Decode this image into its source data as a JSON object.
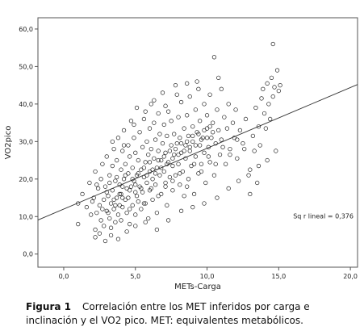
{
  "chart_data": {
    "type": "scatter",
    "xlabel": "METs-Carga",
    "ylabel": "VO2pico",
    "xlim": [
      -1.8,
      20.5
    ],
    "ylim": [
      -3.5,
      63
    ],
    "xticks": [
      "0,0",
      "5,0",
      "10,0",
      "15,0",
      "20,0"
    ],
    "xtick_values": [
      0,
      5,
      10,
      15,
      20
    ],
    "yticks": [
      "0,0",
      "10,0",
      "20,0",
      "30,0",
      "40,0",
      "50,0",
      "60,0"
    ],
    "ytick_values": [
      0,
      10,
      20,
      30,
      40,
      50,
      60
    ],
    "grid": false,
    "marker": "open-circle",
    "fit_line": {
      "intercept": 12.0,
      "slope": 1.62
    },
    "annotation": "Sq r lineal = 0,376",
    "points": [
      [
        1.0,
        13.5
      ],
      [
        1.0,
        8.0
      ],
      [
        1.3,
        16.0
      ],
      [
        1.6,
        12.5
      ],
      [
        1.8,
        19.0
      ],
      [
        1.9,
        10.5
      ],
      [
        2.1,
        15.0
      ],
      [
        2.2,
        6.5
      ],
      [
        2.2,
        22.0
      ],
      [
        2.3,
        11.0
      ],
      [
        2.4,
        17.5
      ],
      [
        2.5,
        13.0
      ],
      [
        2.6,
        9.0
      ],
      [
        2.6,
        20.0
      ],
      [
        2.7,
        24.0
      ],
      [
        2.8,
        14.5
      ],
      [
        2.8,
        7.5
      ],
      [
        2.9,
        18.0
      ],
      [
        3.0,
        11.5
      ],
      [
        3.0,
        26.0
      ],
      [
        3.1,
        15.5
      ],
      [
        3.2,
        21.0
      ],
      [
        3.2,
        9.5
      ],
      [
        3.3,
        13.5
      ],
      [
        3.3,
        5.0
      ],
      [
        3.4,
        17.0
      ],
      [
        3.4,
        23.5
      ],
      [
        3.5,
        12.0
      ],
      [
        3.5,
        28.0
      ],
      [
        3.6,
        19.5
      ],
      [
        3.6,
        8.5
      ],
      [
        3.7,
        15.0
      ],
      [
        3.7,
        25.0
      ],
      [
        3.8,
        10.5
      ],
      [
        3.8,
        31.0
      ],
      [
        3.9,
        18.5
      ],
      [
        3.9,
        13.0
      ],
      [
        4.0,
        22.5
      ],
      [
        4.0,
        16.0
      ],
      [
        4.0,
        9.0
      ],
      [
        4.1,
        27.5
      ],
      [
        4.1,
        12.5
      ],
      [
        4.2,
        20.0
      ],
      [
        4.2,
        33.0
      ],
      [
        4.3,
        14.5
      ],
      [
        4.3,
        24.0
      ],
      [
        4.4,
        17.5
      ],
      [
        4.4,
        11.0
      ],
      [
        4.5,
        29.0
      ],
      [
        4.5,
        21.5
      ],
      [
        4.5,
        15.0
      ],
      [
        4.6,
        8.0
      ],
      [
        4.6,
        26.0
      ],
      [
        4.7,
        18.0
      ],
      [
        4.7,
        35.5
      ],
      [
        4.8,
        13.0
      ],
      [
        4.8,
        23.0
      ],
      [
        4.9,
        19.5
      ],
      [
        4.9,
        31.0
      ],
      [
        5.0,
        16.5
      ],
      [
        5.0,
        10.5
      ],
      [
        5.0,
        27.0
      ],
      [
        5.1,
        21.0
      ],
      [
        5.1,
        39.0
      ],
      [
        5.2,
        14.0
      ],
      [
        5.2,
        25.0
      ],
      [
        5.3,
        18.0
      ],
      [
        5.3,
        32.5
      ],
      [
        5.4,
        22.5
      ],
      [
        5.4,
        12.0
      ],
      [
        5.5,
        28.5
      ],
      [
        5.5,
        16.5
      ],
      [
        5.6,
        20.5
      ],
      [
        5.6,
        36.0
      ],
      [
        5.7,
        24.5
      ],
      [
        5.7,
        13.5
      ],
      [
        5.8,
        30.0
      ],
      [
        5.8,
        19.0
      ],
      [
        5.9,
        26.5
      ],
      [
        5.9,
        9.5
      ],
      [
        6.0,
        22.0
      ],
      [
        6.0,
        33.5
      ],
      [
        6.0,
        17.0
      ],
      [
        6.1,
        28.0
      ],
      [
        6.1,
        40.0
      ],
      [
        6.2,
        20.0
      ],
      [
        6.2,
        14.5
      ],
      [
        6.3,
        25.5
      ],
      [
        6.3,
        35.0
      ],
      [
        6.4,
        18.5
      ],
      [
        6.4,
        30.5
      ],
      [
        6.5,
        23.0
      ],
      [
        6.5,
        11.0
      ],
      [
        6.6,
        27.5
      ],
      [
        6.6,
        37.5
      ],
      [
        6.7,
        21.0
      ],
      [
        6.7,
        32.0
      ],
      [
        6.8,
        16.0
      ],
      [
        6.8,
        25.0
      ],
      [
        6.9,
        29.5
      ],
      [
        6.9,
        43.0
      ],
      [
        7.0,
        22.0
      ],
      [
        7.0,
        34.5
      ],
      [
        7.1,
        19.0
      ],
      [
        7.1,
        27.0
      ],
      [
        7.2,
        31.5
      ],
      [
        7.2,
        13.0
      ],
      [
        7.3,
        24.5
      ],
      [
        7.3,
        38.0
      ],
      [
        7.4,
        20.5
      ],
      [
        7.5,
        29.0
      ],
      [
        7.5,
        35.5
      ],
      [
        7.6,
        23.5
      ],
      [
        7.6,
        17.0
      ],
      [
        7.7,
        32.0
      ],
      [
        7.7,
        26.5
      ],
      [
        7.8,
        45.0
      ],
      [
        7.8,
        21.0
      ],
      [
        7.9,
        29.5
      ],
      [
        8.0,
        24.0
      ],
      [
        8.0,
        36.5
      ],
      [
        8.1,
        18.5
      ],
      [
        8.1,
        31.0
      ],
      [
        8.2,
        27.0
      ],
      [
        8.2,
        40.5
      ],
      [
        8.3,
        22.0
      ],
      [
        8.4,
        33.5
      ],
      [
        8.4,
        15.5
      ],
      [
        8.5,
        29.0
      ],
      [
        8.5,
        25.5
      ],
      [
        8.6,
        37.0
      ],
      [
        8.7,
        20.0
      ],
      [
        8.7,
        31.5
      ],
      [
        8.8,
        42.0
      ],
      [
        8.8,
        27.5
      ],
      [
        8.9,
        23.5
      ],
      [
        9.0,
        34.0
      ],
      [
        9.0,
        30.0
      ],
      [
        9.1,
        16.0
      ],
      [
        9.2,
        38.5
      ],
      [
        9.2,
        26.0
      ],
      [
        9.3,
        32.5
      ],
      [
        9.4,
        21.5
      ],
      [
        9.4,
        44.0
      ],
      [
        9.5,
        29.0
      ],
      [
        9.5,
        35.5
      ],
      [
        9.6,
        24.0
      ],
      [
        9.7,
        31.0
      ],
      [
        9.8,
        40.0
      ],
      [
        9.8,
        27.0
      ],
      [
        9.9,
        19.0
      ],
      [
        10.0,
        33.5
      ],
      [
        10.0,
        37.0
      ],
      [
        10.1,
        28.5
      ],
      [
        10.2,
        42.5
      ],
      [
        10.2,
        24.5
      ],
      [
        10.3,
        31.0
      ],
      [
        10.4,
        35.0
      ],
      [
        10.5,
        52.5
      ],
      [
        10.5,
        21.0
      ],
      [
        10.6,
        29.5
      ],
      [
        10.7,
        38.5
      ],
      [
        10.8,
        33.0
      ],
      [
        10.9,
        26.5
      ],
      [
        11.0,
        44.0
      ],
      [
        11.0,
        30.5
      ],
      [
        11.2,
        36.5
      ],
      [
        11.3,
        24.0
      ],
      [
        11.4,
        33.5
      ],
      [
        11.5,
        40.0
      ],
      [
        11.6,
        28.0
      ],
      [
        11.8,
        35.0
      ],
      [
        11.9,
        31.0
      ],
      [
        12.0,
        38.5
      ],
      [
        12.1,
        25.5
      ],
      [
        12.3,
        33.0
      ],
      [
        12.5,
        29.5
      ],
      [
        12.7,
        36.0
      ],
      [
        13.0,
        16.0
      ],
      [
        13.0,
        22.5
      ],
      [
        13.2,
        31.5
      ],
      [
        13.3,
        27.5
      ],
      [
        13.4,
        39.0
      ],
      [
        13.5,
        19.0
      ],
      [
        13.6,
        34.0
      ],
      [
        13.7,
        29.0
      ],
      [
        13.8,
        41.5
      ],
      [
        13.9,
        44.0
      ],
      [
        14.0,
        37.5
      ],
      [
        14.1,
        33.5
      ],
      [
        14.2,
        45.5
      ],
      [
        14.3,
        40.0
      ],
      [
        14.4,
        36.0
      ],
      [
        14.5,
        47.0
      ],
      [
        14.6,
        56.0
      ],
      [
        14.6,
        42.0
      ],
      [
        14.7,
        44.5
      ],
      [
        14.9,
        49.0
      ],
      [
        15.0,
        43.5
      ],
      [
        15.1,
        45.0
      ],
      [
        2.0,
        14.0
      ],
      [
        2.3,
        18.5
      ],
      [
        2.7,
        12.0
      ],
      [
        3.0,
        16.5
      ],
      [
        3.2,
        19.0
      ],
      [
        3.5,
        14.5
      ],
      [
        3.7,
        20.5
      ],
      [
        3.9,
        16.0
      ],
      [
        4.1,
        18.0
      ],
      [
        4.3,
        21.0
      ],
      [
        4.6,
        17.0
      ],
      [
        4.8,
        20.0
      ],
      [
        5.0,
        18.5
      ],
      [
        5.2,
        21.5
      ],
      [
        5.4,
        17.5
      ],
      [
        5.6,
        23.0
      ],
      [
        5.8,
        21.0
      ],
      [
        6.0,
        24.5
      ],
      [
        6.2,
        22.5
      ],
      [
        6.4,
        21.5
      ],
      [
        6.6,
        25.0
      ],
      [
        6.8,
        23.0
      ],
      [
        7.0,
        26.0
      ],
      [
        7.2,
        24.0
      ],
      [
        7.4,
        27.5
      ],
      [
        7.6,
        25.5
      ],
      [
        7.8,
        28.0
      ],
      [
        8.0,
        26.5
      ],
      [
        8.2,
        29.5
      ],
      [
        8.4,
        27.5
      ],
      [
        8.6,
        30.0
      ],
      [
        8.8,
        28.5
      ],
      [
        9.0,
        31.5
      ],
      [
        9.2,
        29.0
      ],
      [
        9.4,
        32.0
      ],
      [
        9.6,
        30.5
      ],
      [
        9.8,
        33.0
      ],
      [
        10.0,
        31.0
      ],
      [
        10.2,
        34.0
      ],
      [
        10.4,
        32.5
      ],
      [
        3.1,
        11.0
      ],
      [
        3.6,
        13.0
      ],
      [
        4.1,
        15.0
      ],
      [
        4.6,
        12.0
      ],
      [
        5.1,
        15.5
      ],
      [
        5.6,
        13.5
      ],
      [
        6.1,
        17.5
      ],
      [
        6.6,
        15.5
      ],
      [
        7.1,
        18.0
      ],
      [
        7.6,
        19.5
      ],
      [
        8.1,
        21.5
      ],
      [
        8.6,
        18.0
      ],
      [
        9.1,
        24.0
      ],
      [
        9.6,
        22.0
      ],
      [
        10.1,
        26.0
      ],
      [
        10.6,
        24.0
      ],
      [
        11.1,
        28.5
      ],
      [
        11.6,
        26.5
      ],
      [
        12.1,
        30.5
      ],
      [
        12.6,
        28.0
      ],
      [
        3.4,
        30.0
      ],
      [
        4.2,
        29.0
      ],
      [
        4.9,
        34.5
      ],
      [
        5.7,
        38.0
      ],
      [
        6.3,
        41.0
      ],
      [
        7.1,
        39.5
      ],
      [
        7.9,
        42.5
      ],
      [
        8.6,
        45.5
      ],
      [
        9.3,
        46.0
      ],
      [
        10.8,
        47.0
      ],
      [
        2.2,
        4.5
      ],
      [
        2.5,
        5.5
      ],
      [
        2.9,
        3.5
      ],
      [
        3.3,
        7.0
      ],
      [
        3.8,
        4.0
      ],
      [
        4.4,
        6.0
      ],
      [
        5.0,
        7.5
      ],
      [
        5.7,
        8.5
      ],
      [
        6.5,
        6.5
      ],
      [
        7.3,
        9.0
      ],
      [
        8.2,
        11.5
      ],
      [
        9.0,
        12.5
      ],
      [
        9.8,
        13.5
      ],
      [
        10.7,
        15.0
      ],
      [
        11.5,
        17.5
      ],
      [
        12.2,
        19.5
      ],
      [
        12.9,
        21.0
      ],
      [
        13.6,
        23.5
      ],
      [
        14.2,
        25.0
      ],
      [
        14.8,
        27.5
      ]
    ]
  },
  "caption": {
    "label": "Figura 1",
    "text": "Correlación entre los MET inferidos por carga e inclinación y el VO2 pico. MET: equivalentes metabólicos."
  }
}
